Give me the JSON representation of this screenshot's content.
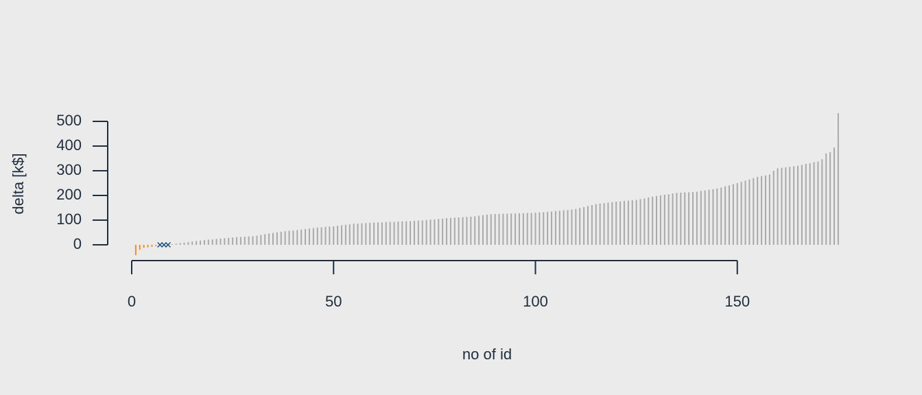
{
  "chart_data": {
    "type": "bar",
    "xlabel": "no of id",
    "ylabel": "delta [k$]",
    "xlim": [
      0,
      175
    ],
    "ylim": [
      0,
      500
    ],
    "xticks": [
      0,
      50,
      100,
      150
    ],
    "yticks": [
      0,
      100,
      200,
      300,
      400,
      500
    ],
    "series": [
      {
        "mark": "spike",
        "color": "#f28e1c",
        "x": [
          1,
          2,
          3,
          4,
          5,
          6
        ],
        "values": [
          -42,
          -20,
          -12,
          -10,
          -8,
          -5
        ]
      },
      {
        "mark": "cross",
        "color": "#1f4e79",
        "x": [
          7,
          8,
          9
        ],
        "values": [
          0,
          0,
          0
        ]
      },
      {
        "mark": "spike",
        "color": "#a9a9a9",
        "x": [
          10,
          11,
          12,
          13,
          14,
          15,
          16,
          17,
          18,
          19,
          20,
          21,
          22,
          23,
          24,
          25,
          26,
          27,
          28,
          29,
          30,
          31,
          32,
          33,
          34,
          35,
          36,
          37,
          38,
          39,
          40,
          41,
          42,
          43,
          44,
          45,
          46,
          47,
          48,
          49,
          50,
          51,
          52,
          53,
          54,
          55,
          56,
          57,
          58,
          59,
          60,
          61,
          62,
          63,
          64,
          65,
          66,
          67,
          68,
          69,
          70,
          71,
          72,
          73,
          74,
          75,
          76,
          77,
          78,
          79,
          80,
          81,
          82,
          83,
          84,
          85,
          86,
          87,
          88,
          89,
          90,
          91,
          92,
          93,
          94,
          95,
          96,
          97,
          98,
          99,
          100,
          101,
          102,
          103,
          104,
          105,
          106,
          107,
          108,
          109,
          110,
          111,
          112,
          113,
          114,
          115,
          116,
          117,
          118,
          119,
          120,
          121,
          122,
          123,
          124,
          125,
          126,
          127,
          128,
          129,
          130,
          131,
          132,
          133,
          134,
          135,
          136,
          137,
          138,
          139,
          140,
          141,
          142,
          143,
          144,
          145,
          146,
          147,
          148,
          149,
          150,
          151,
          152,
          153,
          154,
          155,
          156,
          157,
          158,
          159,
          160,
          161,
          162,
          163,
          164,
          165,
          166,
          167,
          168,
          169,
          170,
          171,
          172,
          173,
          174,
          175
        ],
        "values": [
          3,
          5,
          7,
          9,
          11,
          13,
          15,
          17,
          19,
          21,
          22,
          24,
          25,
          27,
          28,
          30,
          31,
          32,
          33,
          34,
          35,
          37,
          40,
          43,
          46,
          48,
          51,
          53,
          55,
          57,
          58,
          60,
          62,
          64,
          66,
          68,
          70,
          71,
          73,
          74,
          75,
          77,
          79,
          81,
          83,
          85,
          86,
          87,
          88,
          89,
          90,
          91,
          91,
          92,
          93,
          93,
          94,
          95,
          95,
          96,
          97,
          98,
          99,
          100,
          102,
          103,
          105,
          106,
          108,
          109,
          110,
          111,
          112,
          113,
          114,
          116,
          118,
          120,
          122,
          124,
          125,
          125,
          126,
          126,
          127,
          127,
          128,
          128,
          129,
          129,
          130,
          131,
          132,
          134,
          135,
          137,
          138,
          140,
          141,
          143,
          145,
          149,
          153,
          157,
          161,
          165,
          167,
          169,
          171,
          173,
          175,
          176,
          178,
          179,
          181,
          182,
          185,
          188,
          192,
          195,
          198,
          200,
          203,
          205,
          208,
          210,
          211,
          212,
          213,
          214,
          215,
          218,
          220,
          223,
          225,
          228,
          232,
          237,
          241,
          246,
          250,
          255,
          260,
          265,
          270,
          275,
          278,
          281,
          285,
          300,
          310,
          312,
          314,
          316,
          318,
          320,
          324,
          328,
          331,
          335,
          338,
          347,
          370,
          375,
          394,
          533
        ]
      }
    ]
  }
}
